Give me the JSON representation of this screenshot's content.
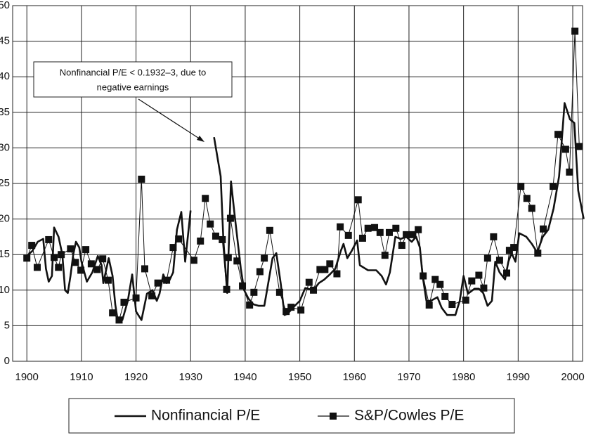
{
  "chart_data": {
    "type": "line",
    "annotation": [
      "Nonfinancial P/E < 0.1932–3, due to",
      "negative earnings"
    ],
    "xlim": [
      1897.4,
      2001.8
    ],
    "ylim": [
      0,
      50
    ],
    "xticks": [
      1900,
      1910,
      1920,
      1930,
      1940,
      1950,
      1960,
      1970,
      1980,
      1990,
      2000
    ],
    "yticks": [
      0,
      5,
      10,
      15,
      20,
      25,
      30,
      35,
      40,
      45,
      50
    ],
    "grid": true,
    "legend": "bottom",
    "series": [
      {
        "name": "Nonfinancial P/E",
        "color": "#111111",
        "marker": "none",
        "x": [
          1900,
          1901,
          1902,
          1903,
          1903.5,
          1904,
          1904.6,
          1905,
          1905.8,
          1906.5,
          1907,
          1907.5,
          1908,
          1908.5,
          1909,
          1909.6,
          1910,
          1911,
          1912,
          1913,
          1913.7,
          1914,
          1915,
          1915.7,
          1916.2,
          1916.7,
          1917.5,
          1918.5,
          1919.3,
          1920,
          1921,
          1922,
          1923,
          1923.8,
          1924.3,
          1925,
          1925.6,
          1926,
          1926.8,
          1927.5,
          1928.3,
          1929,
          1929.7,
          1930,
          null,
          1934.3,
          1935.5,
          1936,
          1936.7,
          1937.4,
          1938,
          1939.2,
          1939.8,
          1940.6,
          1941.5,
          1942.5,
          1943.5,
          1944,
          1945,
          1945.7,
          1946.5,
          1947.2,
          1947.8,
          1948.7,
          1950,
          1951,
          1952.5,
          1953.5,
          1954.5,
          1955.5,
          1956.5,
          1957.5,
          1958,
          1958.7,
          1959.5,
          1960.5,
          1961,
          1962.5,
          1964,
          1965,
          1965.8,
          1966.5,
          1967.5,
          1968.5,
          1969.5,
          1970.5,
          1971.3,
          1972,
          1972.5,
          1973.2,
          1974,
          1975.2,
          1976,
          1977,
          1978.5,
          1979.3,
          1980,
          1980.8,
          1982,
          1982.8,
          1983.6,
          1984.4,
          1985.2,
          1985.8,
          1986.6,
          1987.6,
          1988.2,
          1988.8,
          1989.5,
          1990.2,
          1991.5,
          1992.5,
          1993.5,
          1994.5,
          1995.5,
          1996.5,
          1997.5,
          1998.5,
          1999.5,
          2000.3,
          2001,
          2002
        ],
        "values": [
          14.8,
          15.5,
          16.8,
          17.2,
          13,
          11.2,
          12,
          18.8,
          17.5,
          15,
          10,
          9.6,
          12,
          15,
          16.8,
          16,
          14,
          11.2,
          12.5,
          14.8,
          13.5,
          11,
          14.5,
          12,
          8,
          5.5,
          5.8,
          8.5,
          12.2,
          7,
          5.8,
          9.5,
          10,
          8.5,
          9.5,
          12.2,
          11,
          11.2,
          12.5,
          18.5,
          21,
          14,
          19,
          21.2,
          null,
          31.5,
          26,
          17,
          9.6,
          25.3,
          21,
          13,
          10,
          8.8,
          8,
          7.8,
          7.8,
          10,
          14.5,
          15.2,
          11,
          6.5,
          6.7,
          7.5,
          8.5,
          10.3,
          10,
          11,
          11.5,
          12.2,
          13,
          15.5,
          16.5,
          14.5,
          15.5,
          17,
          13.5,
          12.8,
          12.8,
          12,
          10.8,
          12.5,
          17.5,
          17.2,
          17.5,
          16.8,
          17.5,
          16,
          12,
          8.5,
          8.5,
          9,
          7.5,
          6.5,
          6.5,
          8.5,
          12,
          9.5,
          10.2,
          10.2,
          9.6,
          7.8,
          8.5,
          14,
          12.5,
          11.5,
          14,
          15.2,
          14,
          18,
          17.5,
          16.5,
          15.3,
          17.5,
          18.5,
          21.5,
          26,
          36.3,
          34,
          33.5,
          24,
          20
        ]
      },
      {
        "name": "S&P/Cowles P/E",
        "color": "#111111",
        "marker": "square",
        "x": [
          1900,
          1900.9,
          1901.9,
          1904,
          1905,
          1905.8,
          1906.3,
          1908,
          1908.9,
          1909.9,
          1910.8,
          1911.8,
          1912.9,
          1913.9,
          1914.9,
          1915.7,
          1916.9,
          1917.8,
          1920,
          1921,
          1921.6,
          1922.9,
          1924,
          1925.6,
          1926.8,
          1927.8,
          1930.6,
          1931.8,
          1932.7,
          1933.6,
          1934.6,
          1935.8,
          1936.6,
          1936.9,
          1937.3,
          1938.5,
          1939.5,
          1940.8,
          1941.6,
          1942.7,
          1943.5,
          1944.5,
          1946.3,
          1947.5,
          1948.4,
          1950.2,
          1951.7,
          1952.5,
          1953.7,
          1954.6,
          1955.5,
          1956.8,
          1957.4,
          1958.9,
          1960.7,
          1961.5,
          1962.5,
          1963.7,
          1964.7,
          1965.6,
          1966.4,
          1967.6,
          1968.7,
          1969.5,
          1970.7,
          1971.7,
          1972.6,
          1973.7,
          1974.8,
          1975.7,
          1976.6,
          1977.9,
          1980.4,
          1981.5,
          1982.8,
          1983.7,
          1984.4,
          1985.5,
          1986.6,
          1987.9,
          1988.4,
          1989.2,
          1990.5,
          1991.6,
          1992.5,
          1993.6,
          1994.6,
          1996.4,
          1997.3,
          1998.7,
          1999.4,
          2000.4,
          2001.2
        ],
        "values": [
          14.5,
          16.3,
          13.2,
          17.1,
          14.6,
          13.2,
          15,
          15.8,
          13.9,
          12.8,
          15.7,
          13.7,
          12.9,
          14.4,
          11.4,
          6.8,
          5.8,
          8.3,
          8.9,
          25.6,
          13,
          9.2,
          11,
          11.4,
          16,
          17.2,
          14.2,
          16.9,
          22.9,
          19.3,
          17.6,
          17.1,
          10.1,
          14.6,
          20.1,
          14.1,
          10.6,
          7.9,
          9.7,
          12.6,
          14.5,
          18.4,
          9.7,
          7,
          7.6,
          7.2,
          11.1,
          10,
          12.9,
          12.9,
          13.7,
          12.3,
          18.9,
          17.7,
          22.7,
          17.3,
          18.7,
          18.8,
          18.1,
          14.9,
          18.1,
          18.7,
          16.3,
          17.8,
          17.8,
          18.5,
          12,
          7.9,
          11.5,
          10.8,
          9.1,
          8,
          8.6,
          11.3,
          12.1,
          10.3,
          14.5,
          17.5,
          14.2,
          12.4,
          15.6,
          16,
          24.6,
          22.9,
          21.5,
          15.2,
          18.6,
          24.6,
          31.9,
          29.8,
          26.6,
          46.4,
          30.2
        ]
      }
    ]
  }
}
